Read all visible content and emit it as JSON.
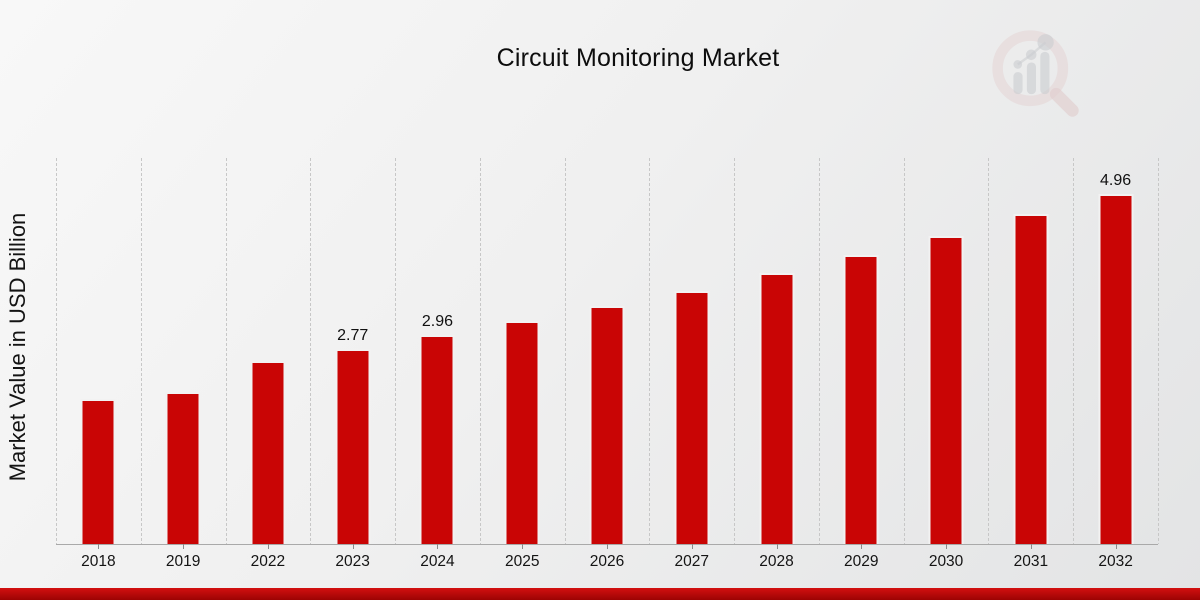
{
  "page": {
    "background_top": "#f8f8f8",
    "background_bottom": "#e3e4e5"
  },
  "branding": {
    "logo_icon": "magnifier-bar-chart-watermark-icon",
    "ring_color": "#debbbb",
    "bars_color": "#b4b7bd",
    "dots_color": "#b4b7bd",
    "handle_color": "#d6aeae"
  },
  "footer": {
    "banner_color_top": "#d31010",
    "banner_color_bottom": "#9c0303"
  },
  "chart_data": {
    "type": "bar",
    "title": "Circuit Monitoring Market",
    "xlabel": "",
    "ylabel": "Market Value in USD Billion",
    "categories": [
      "2018",
      "2019",
      "2022",
      "2023",
      "2024",
      "2025",
      "2026",
      "2027",
      "2028",
      "2029",
      "2030",
      "2031",
      "2032"
    ],
    "values": [
      2.06,
      2.16,
      2.59,
      2.77,
      2.96,
      3.16,
      3.37,
      3.59,
      3.84,
      4.1,
      4.37,
      4.67,
      4.96
    ],
    "value_labels": {
      "2023": "2.77",
      "2024": "2.96",
      "2032": "4.96"
    },
    "bar_color": "#c90505",
    "bar_edge_color": "#f2f2f2",
    "gridlines": "vertical-dashed",
    "gridline_color": "#c7c7c7",
    "axis_line_color": "#a9a9a9",
    "ylim": [
      0,
      5.47
    ],
    "legend": "none"
  }
}
